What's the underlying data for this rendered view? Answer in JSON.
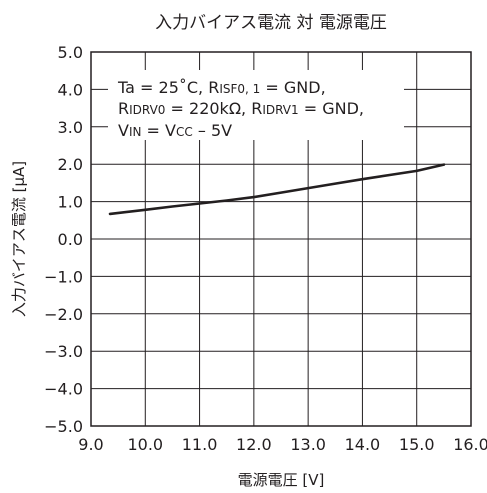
{
  "chart_data": {
    "type": "line",
    "title": "入力バイアス電流 対 電源電圧",
    "xlabel": "電源電圧 [V]",
    "ylabel": "入力バイアス電流 [μA]",
    "xlim": [
      9.0,
      16.0
    ],
    "ylim": [
      -5.0,
      5.0
    ],
    "x_ticks": [
      "9.0",
      "10.0",
      "11.0",
      "12.0",
      "13.0",
      "14.0",
      "15.0",
      "16.0"
    ],
    "y_ticks": [
      "5.0",
      "4.0",
      "3.0",
      "2.0",
      "1.0",
      "0.0",
      "−1.0",
      "−2.0",
      "−3.0",
      "−4.0",
      "−5.0"
    ],
    "grid": true,
    "series": [
      {
        "x": [
          9.35,
          10.0,
          10.5,
          11.0,
          11.5,
          12.0,
          12.5,
          13.0,
          13.5,
          14.0,
          14.5,
          15.0,
          15.5
        ],
        "y": [
          0.67,
          0.78,
          0.87,
          0.95,
          1.03,
          1.12,
          1.24,
          1.36,
          1.48,
          1.6,
          1.71,
          1.82,
          1.99
        ],
        "color": "#231f20"
      }
    ],
    "annotation": {
      "line1": {
        "a": "Ta = 25˚C,   R",
        "b": "ISF0, 1",
        "c": " = GND,"
      },
      "line2": {
        "a": "R",
        "b": "IDRV0",
        "c": " = 220kΩ,   R",
        "d": "IDRV1",
        "e": " = GND,"
      },
      "line3": {
        "a": "V",
        "b": "IN",
        "c": " = V",
        "d": "CC",
        "e": " – 5V"
      }
    }
  }
}
